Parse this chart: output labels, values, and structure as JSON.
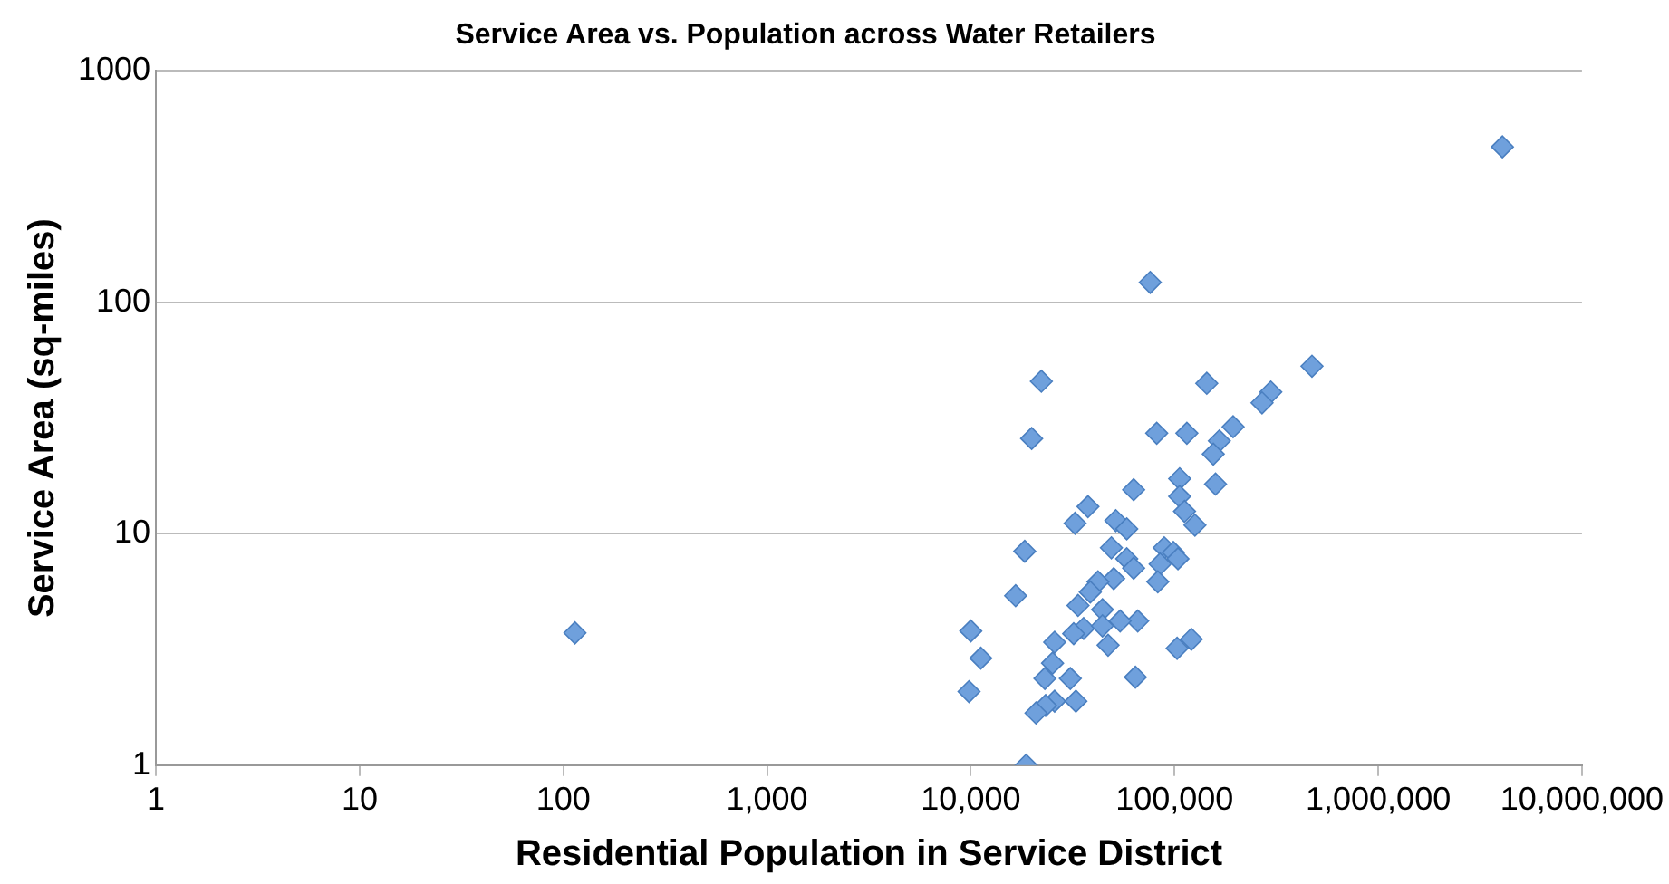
{
  "chart_data": {
    "type": "scatter",
    "title": "Service Area vs. Population across Water Retailers",
    "xlabel": "Residential Population in Service District",
    "ylabel": "Service Area (sq-miles)",
    "log": "xy",
    "grid": "y",
    "marker": "diamond",
    "legend": false,
    "xlim": [
      1,
      10000000
    ],
    "ylim": [
      1,
      1000
    ],
    "xticks": [
      1,
      10,
      {
        "value": 100,
        "label": "100"
      },
      {
        "value": 1000,
        "label": "1,000"
      },
      {
        "value": 10000,
        "label": "10,000"
      },
      {
        "value": 100000,
        "label": "100,000"
      },
      {
        "value": 1000000,
        "label": "1,000,000"
      },
      {
        "value": 10000000,
        "label": "10,000,000"
      }
    ],
    "yticks": [
      1,
      10,
      100,
      1000
    ],
    "series": [
      {
        "color": "#6fa0dc",
        "x": [
          114,
          4070000,
          76000,
          22200,
          19900,
          144000,
          473000,
          297000,
          269000,
          194000,
          166000,
          155000,
          159000,
          81800,
          115000,
          63000,
          106000,
          106000,
          112000,
          126000,
          37600,
          32500,
          51500,
          58300,
          18400,
          49000,
          89000,
          98700,
          104000,
          85000,
          58300,
          63000,
          82800,
          50300,
          42100,
          38600,
          16600,
          33600,
          44300,
          66000,
          54100,
          35800,
          44300,
          32000,
          10000,
          11200,
          25800,
          47200,
          103000,
          121000,
          25200,
          30800,
          23100,
          64300,
          9800,
          25800,
          32800,
          23300,
          20900,
          18700
        ],
        "values": [
          3.73,
          470,
          122,
          45.6,
          25.8,
          44.7,
          53,
          41,
          36.8,
          29,
          25.2,
          22.1,
          16.4,
          27.2,
          27.2,
          15.5,
          17.3,
          14.5,
          12.5,
          10.9,
          13.1,
          11.1,
          11.4,
          10.5,
          8.4,
          8.7,
          8.7,
          8.3,
          7.8,
          7.4,
          7.8,
          7.1,
          6.2,
          6.4,
          6.2,
          5.6,
          5.4,
          4.9,
          4.7,
          4.2,
          4.2,
          3.9,
          4.0,
          3.7,
          3.8,
          2.9,
          3.4,
          3.3,
          3.2,
          3.5,
          2.76,
          2.37,
          2.37,
          2.4,
          2.08,
          1.89,
          1.89,
          1.81,
          1.68,
          1.0
        ]
      }
    ]
  }
}
